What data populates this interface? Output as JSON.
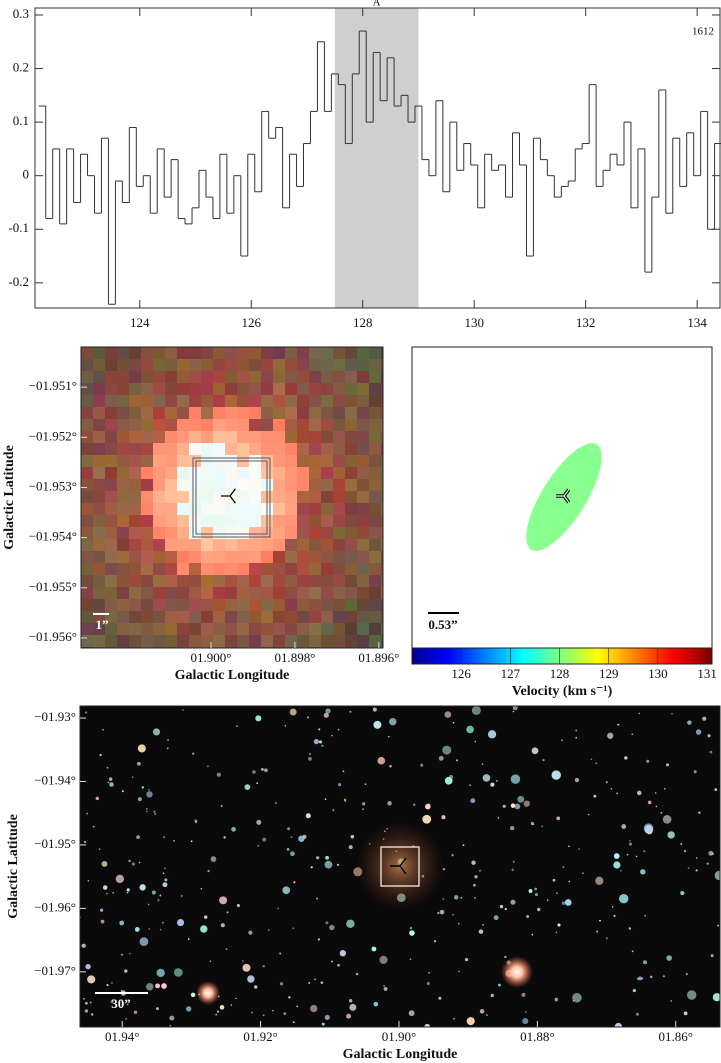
{
  "chart_data": [
    {
      "type": "step",
      "annotation": "A",
      "label": "1612",
      "color": "#333333",
      "highlight": [
        127.5,
        129
      ],
      "xlim": [
        122.12,
        134.41
      ],
      "ylim": [
        -0.247,
        0.313
      ],
      "xticks": [
        124,
        126,
        128,
        130,
        132,
        134
      ],
      "yticks": [
        -0.2,
        -0.1,
        0,
        0.1,
        0.2,
        0.3
      ],
      "x": [
        122.25,
        122.375,
        122.5,
        122.625,
        122.75,
        122.875,
        123,
        123.125,
        123.25,
        123.375,
        123.5,
        123.625,
        123.75,
        123.875,
        124,
        124.125,
        124.25,
        124.375,
        124.5,
        124.625,
        124.75,
        124.875,
        125,
        125.125,
        125.25,
        125.375,
        125.5,
        125.625,
        125.75,
        125.875,
        126,
        126.125,
        126.25,
        126.375,
        126.5,
        126.625,
        126.75,
        126.875,
        127,
        127.125,
        127.25,
        127.375,
        127.5,
        127.625,
        127.75,
        127.875,
        128,
        128.125,
        128.25,
        128.375,
        128.5,
        128.625,
        128.75,
        128.875,
        129,
        129.125,
        129.25,
        129.375,
        129.5,
        129.625,
        129.75,
        129.875,
        130,
        130.125,
        130.25,
        130.375,
        130.5,
        130.625,
        130.75,
        130.875,
        131,
        131.125,
        131.25,
        131.375,
        131.5,
        131.625,
        131.75,
        131.875,
        132,
        132.125,
        132.25,
        132.375,
        132.5,
        132.625,
        132.75,
        132.875,
        133,
        133.125,
        133.25,
        133.375,
        133.5,
        133.625,
        133.75,
        133.875,
        134,
        134.125,
        134.25,
        134.375
      ],
      "values": [
        0.13,
        -0.08,
        0.05,
        -0.09,
        0.05,
        -0.05,
        0.04,
        0.0,
        -0.07,
        0.07,
        -0.24,
        -0.01,
        -0.05,
        0.09,
        -0.02,
        0.0,
        -0.07,
        0.05,
        -0.04,
        0.03,
        -0.08,
        -0.09,
        -0.06,
        0.01,
        -0.04,
        -0.08,
        0.04,
        -0.07,
        0.0,
        -0.15,
        0.04,
        -0.03,
        0.12,
        0.07,
        0.09,
        -0.06,
        0.04,
        -0.02,
        0.06,
        0.12,
        0.25,
        0.12,
        0.19,
        0.17,
        0.06,
        0.19,
        0.27,
        0.1,
        0.23,
        0.14,
        0.22,
        0.13,
        0.15,
        0.1,
        0.13,
        0.03,
        0.0,
        0.14,
        -0.03,
        0.1,
        0.01,
        0.06,
        0.02,
        -0.06,
        0.04,
        0.01,
        0.02,
        -0.04,
        0.08,
        0.02,
        -0.15,
        0.07,
        0.03,
        0.0,
        -0.04,
        -0.02,
        -0.01,
        0.05,
        0.06,
        0.17,
        -0.02,
        0.01,
        0.04,
        0.02,
        0.1,
        -0.06,
        0.05,
        -0.18,
        -0.04,
        0.16,
        -0.07,
        0.07,
        -0.02,
        0.08,
        0.0,
        0.12,
        -0.1,
        0.06
      ]
    },
    {
      "type": "image",
      "xlabel": "Galactic Longitude",
      "ylabel": "Galactic Latitude",
      "scale_bar": "1”",
      "xlim": [
        1.9031,
        1.8959
      ],
      "ylim": [
        -1.9562,
        -1.9502
      ],
      "xticks": [
        {
          "value": 1.9,
          "label": "01.900°"
        },
        {
          "value": 1.898,
          "label": "01.898°"
        },
        {
          "value": 1.896,
          "label": "01.896°"
        }
      ],
      "yticks": [
        {
          "value": -1.951,
          "label": "−01.951°"
        },
        {
          "value": -1.952,
          "label": "−01.952°"
        },
        {
          "value": -1.953,
          "label": "−01.953°"
        },
        {
          "value": -1.954,
          "label": "−01.954°"
        },
        {
          "value": -1.955,
          "label": "−01.955°"
        },
        {
          "value": -1.956,
          "label": "−01.956°"
        }
      ]
    },
    {
      "type": "ellipse",
      "scale_bar": "0.53”",
      "values": [
        128.0
      ],
      "colorbar": {
        "label": "Velocity (km s⁻¹)",
        "lim": [
          125,
          131.1
        ],
        "ticks": [
          126,
          127,
          128,
          129,
          130,
          131
        ]
      }
    },
    {
      "type": "image",
      "xlabel": "Galactic Longitude",
      "ylabel": "Galactic Latitude",
      "scale_bar": "30”",
      "field": true,
      "xlim": [
        1.9461,
        1.8536
      ],
      "ylim": [
        -1.9787,
        -1.9281
      ],
      "xticks": [
        {
          "value": 1.94,
          "label": "01.94°"
        },
        {
          "value": 1.92,
          "label": "01.92°"
        },
        {
          "value": 1.9,
          "label": "01.90°"
        },
        {
          "value": 1.88,
          "label": "01.88°"
        },
        {
          "value": 1.86,
          "label": "01.86°"
        }
      ],
      "yticks": [
        {
          "value": -1.97,
          "label": "−01.97°"
        },
        {
          "value": -1.96,
          "label": "−01.96°"
        },
        {
          "value": -1.95,
          "label": "−01.95°"
        },
        {
          "value": -1.94,
          "label": "−01.94°"
        },
        {
          "value": -1.93,
          "label": "−01.93°"
        }
      ]
    }
  ]
}
